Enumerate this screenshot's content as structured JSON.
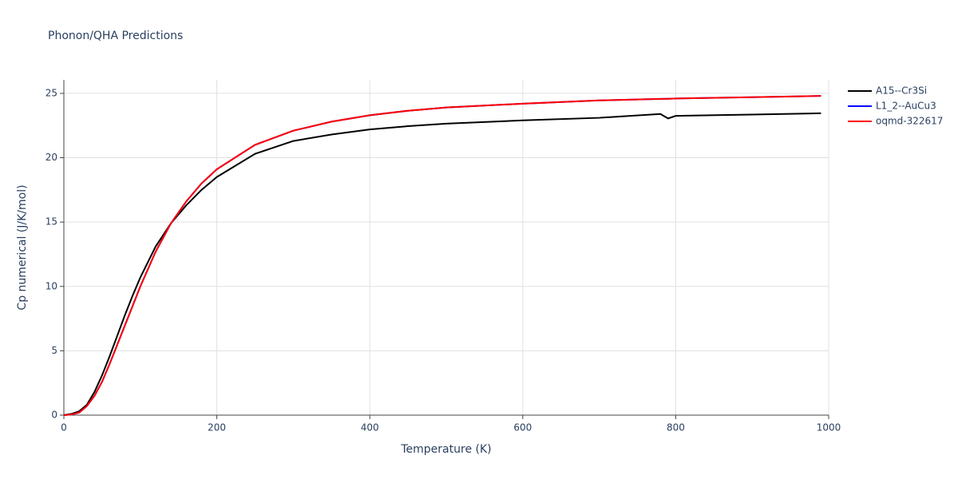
{
  "chart_data": {
    "type": "line",
    "title": "Phonon/QHA Predictions",
    "x_label": "Temperature (K)",
    "y_label": "Cp numerical (J/K/mol)",
    "x": [
      0,
      10,
      20,
      30,
      40,
      50,
      60,
      70,
      80,
      90,
      100,
      120,
      140,
      160,
      180,
      200,
      250,
      300,
      350,
      400,
      450,
      500,
      600,
      700,
      780,
      790,
      800,
      900,
      990
    ],
    "series": [
      {
        "name": "A15--Cr3Si",
        "color": "#000000",
        "values": [
          0,
          0.1,
          0.3,
          0.8,
          1.8,
          3.1,
          4.6,
          6.2,
          7.8,
          9.3,
          10.7,
          13.1,
          14.9,
          16.3,
          17.5,
          18.5,
          20.3,
          21.3,
          21.8,
          22.2,
          22.45,
          22.65,
          22.9,
          23.1,
          23.4,
          23.05,
          23.25,
          23.35,
          23.45
        ]
      },
      {
        "name": "L1_2--AuCu3",
        "color": "#0000ff",
        "values": [
          0,
          0.05,
          0.2,
          0.7,
          1.5,
          2.6,
          4.0,
          5.5,
          7.0,
          8.5,
          10.0,
          12.7,
          14.9,
          16.6,
          18.0,
          19.1,
          21.0,
          22.1,
          22.8,
          23.3,
          23.65,
          23.9,
          24.2,
          24.45,
          24.57,
          24.58,
          24.6,
          24.7,
          24.8
        ]
      },
      {
        "name": "oqmd-322617",
        "color": "#ff0000",
        "values": [
          0,
          0.05,
          0.2,
          0.7,
          1.5,
          2.6,
          4.0,
          5.5,
          7.0,
          8.5,
          10.0,
          12.7,
          14.9,
          16.6,
          18.0,
          19.1,
          21.0,
          22.1,
          22.8,
          23.3,
          23.65,
          23.9,
          24.2,
          24.45,
          24.57,
          24.58,
          24.6,
          24.7,
          24.8
        ]
      }
    ],
    "xlim": [
      0,
      1000
    ],
    "xticks": [
      0,
      200,
      400,
      600,
      800,
      1000
    ],
    "ylim": [
      0,
      26.05
    ],
    "yticks": [
      0,
      5,
      10,
      15,
      20,
      25
    ],
    "grid": true
  }
}
